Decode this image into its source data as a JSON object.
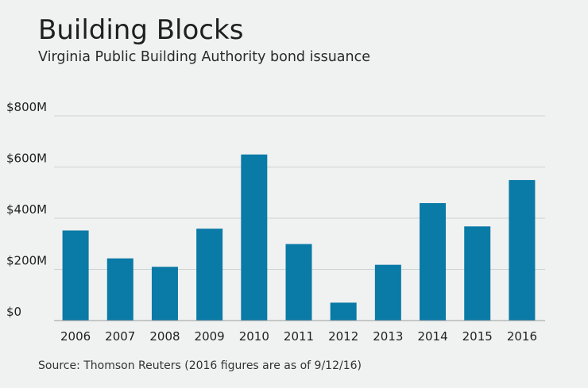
{
  "header": {
    "title": "Building Blocks",
    "subtitle": "Virginia Public Building Authority bond issuance"
  },
  "footer": {
    "source": "Source: Thomson Reuters (2016 figures are as of 9/12/16)"
  },
  "colors": {
    "bar": "#0a7aa6",
    "grid": "#cfd2d3",
    "axis": "#9a9a9a",
    "background": "#f0f1f1"
  },
  "chart_data": {
    "type": "bar",
    "title": "Building Blocks",
    "subtitle": "Virginia Public Building Authority bond issuance",
    "categories": [
      "2006",
      "2007",
      "2008",
      "2009",
      "2010",
      "2011",
      "2012",
      "2013",
      "2014",
      "2015",
      "2016"
    ],
    "values": [
      352,
      243,
      210,
      359,
      649,
      299,
      70,
      218,
      459,
      368,
      549
    ],
    "unit": "millions of dollars",
    "ylim": [
      0,
      800
    ],
    "yticks": [
      0,
      200,
      400,
      600,
      800
    ],
    "ytick_labels": [
      "$0",
      "$200M",
      "$400M",
      "$600M",
      "$800M"
    ],
    "grid": true,
    "legend": "none"
  }
}
